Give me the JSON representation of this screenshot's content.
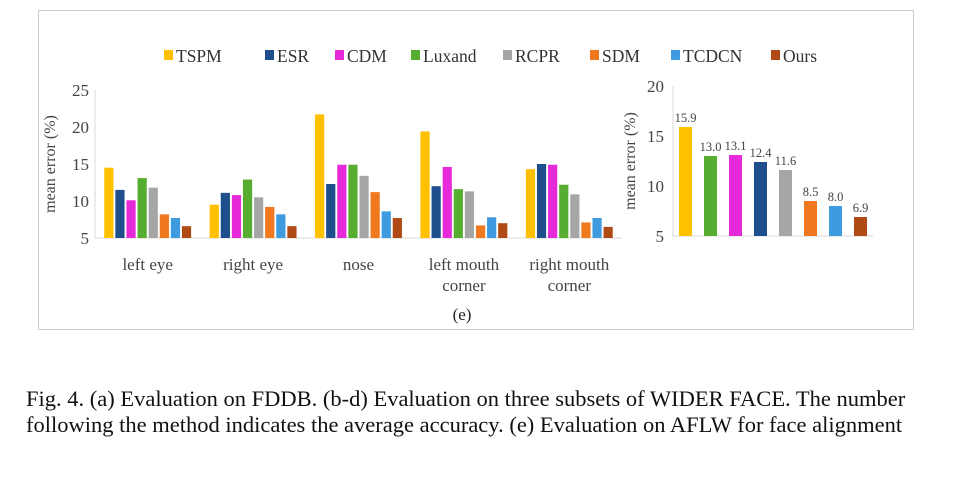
{
  "chart_data": [
    {
      "type": "bar",
      "title": "",
      "xlabel": "",
      "ylabel": "mean error (%)",
      "ylim": [
        5,
        25
      ],
      "yticks": [
        5,
        10,
        15,
        20,
        25
      ],
      "categories": [
        [
          "left eye"
        ],
        [
          "right eye"
        ],
        [
          "nose"
        ],
        [
          "left mouth",
          "corner"
        ],
        [
          "right mouth",
          "corner"
        ]
      ],
      "series": [
        {
          "name": "TSPM",
          "color": "#FFC000",
          "values": [
            14.5,
            9.5,
            21.7,
            19.4,
            14.3
          ]
        },
        {
          "name": "ESR",
          "color": "#1F4E8C",
          "values": [
            11.5,
            11.1,
            12.3,
            12.0,
            15.0
          ]
        },
        {
          "name": "CDM",
          "color": "#E62AD9",
          "values": [
            10.1,
            10.8,
            14.9,
            14.6,
            14.9
          ]
        },
        {
          "name": "Luxand",
          "color": "#57AD2F",
          "values": [
            13.1,
            12.9,
            14.9,
            11.6,
            12.2
          ]
        },
        {
          "name": "RCPR",
          "color": "#A6A6A6",
          "values": [
            11.8,
            10.5,
            13.4,
            11.3,
            10.9
          ]
        },
        {
          "name": "SDM",
          "color": "#F0781E",
          "values": [
            8.2,
            9.2,
            11.2,
            6.7,
            7.1
          ]
        },
        {
          "name": "TCDCN",
          "color": "#3E9BE0",
          "values": [
            7.7,
            8.2,
            8.6,
            7.8,
            7.7
          ]
        },
        {
          "name": "Ours",
          "color": "#B04A14",
          "values": [
            6.6,
            6.6,
            7.7,
            7.0,
            6.5
          ]
        }
      ],
      "legend": "top",
      "grid": false
    },
    {
      "type": "bar",
      "title": "",
      "xlabel": "",
      "ylabel": "mean error (%)",
      "ylim": [
        5,
        20
      ],
      "yticks": [
        5,
        10,
        15,
        20
      ],
      "categories": [
        "TSPM",
        "Luxand",
        "CDM",
        "ESR",
        "RCPR",
        "SDM",
        "TCDCN",
        "Ours"
      ],
      "values": [
        15.9,
        13.0,
        13.1,
        12.4,
        11.6,
        8.5,
        8.0,
        6.9
      ],
      "value_labels": [
        "15.9",
        "13.0",
        "13.1",
        "12.4",
        "11.6",
        "8.5",
        "8.0",
        "6.9"
      ],
      "colors": [
        "#FFC000",
        "#57AD2F",
        "#E62AD9",
        "#1F4E8C",
        "#A6A6A6",
        "#F0781E",
        "#3E9BE0",
        "#B04A14"
      ],
      "grid": false
    }
  ],
  "panel_label": "(e)",
  "caption": "Fig. 4.  (a) Evaluation on FDDB. (b-d) Evaluation on three subsets of WIDER FACE. The number following the method indicates the average accuracy. (e) Evaluation on AFLW for face alignment"
}
